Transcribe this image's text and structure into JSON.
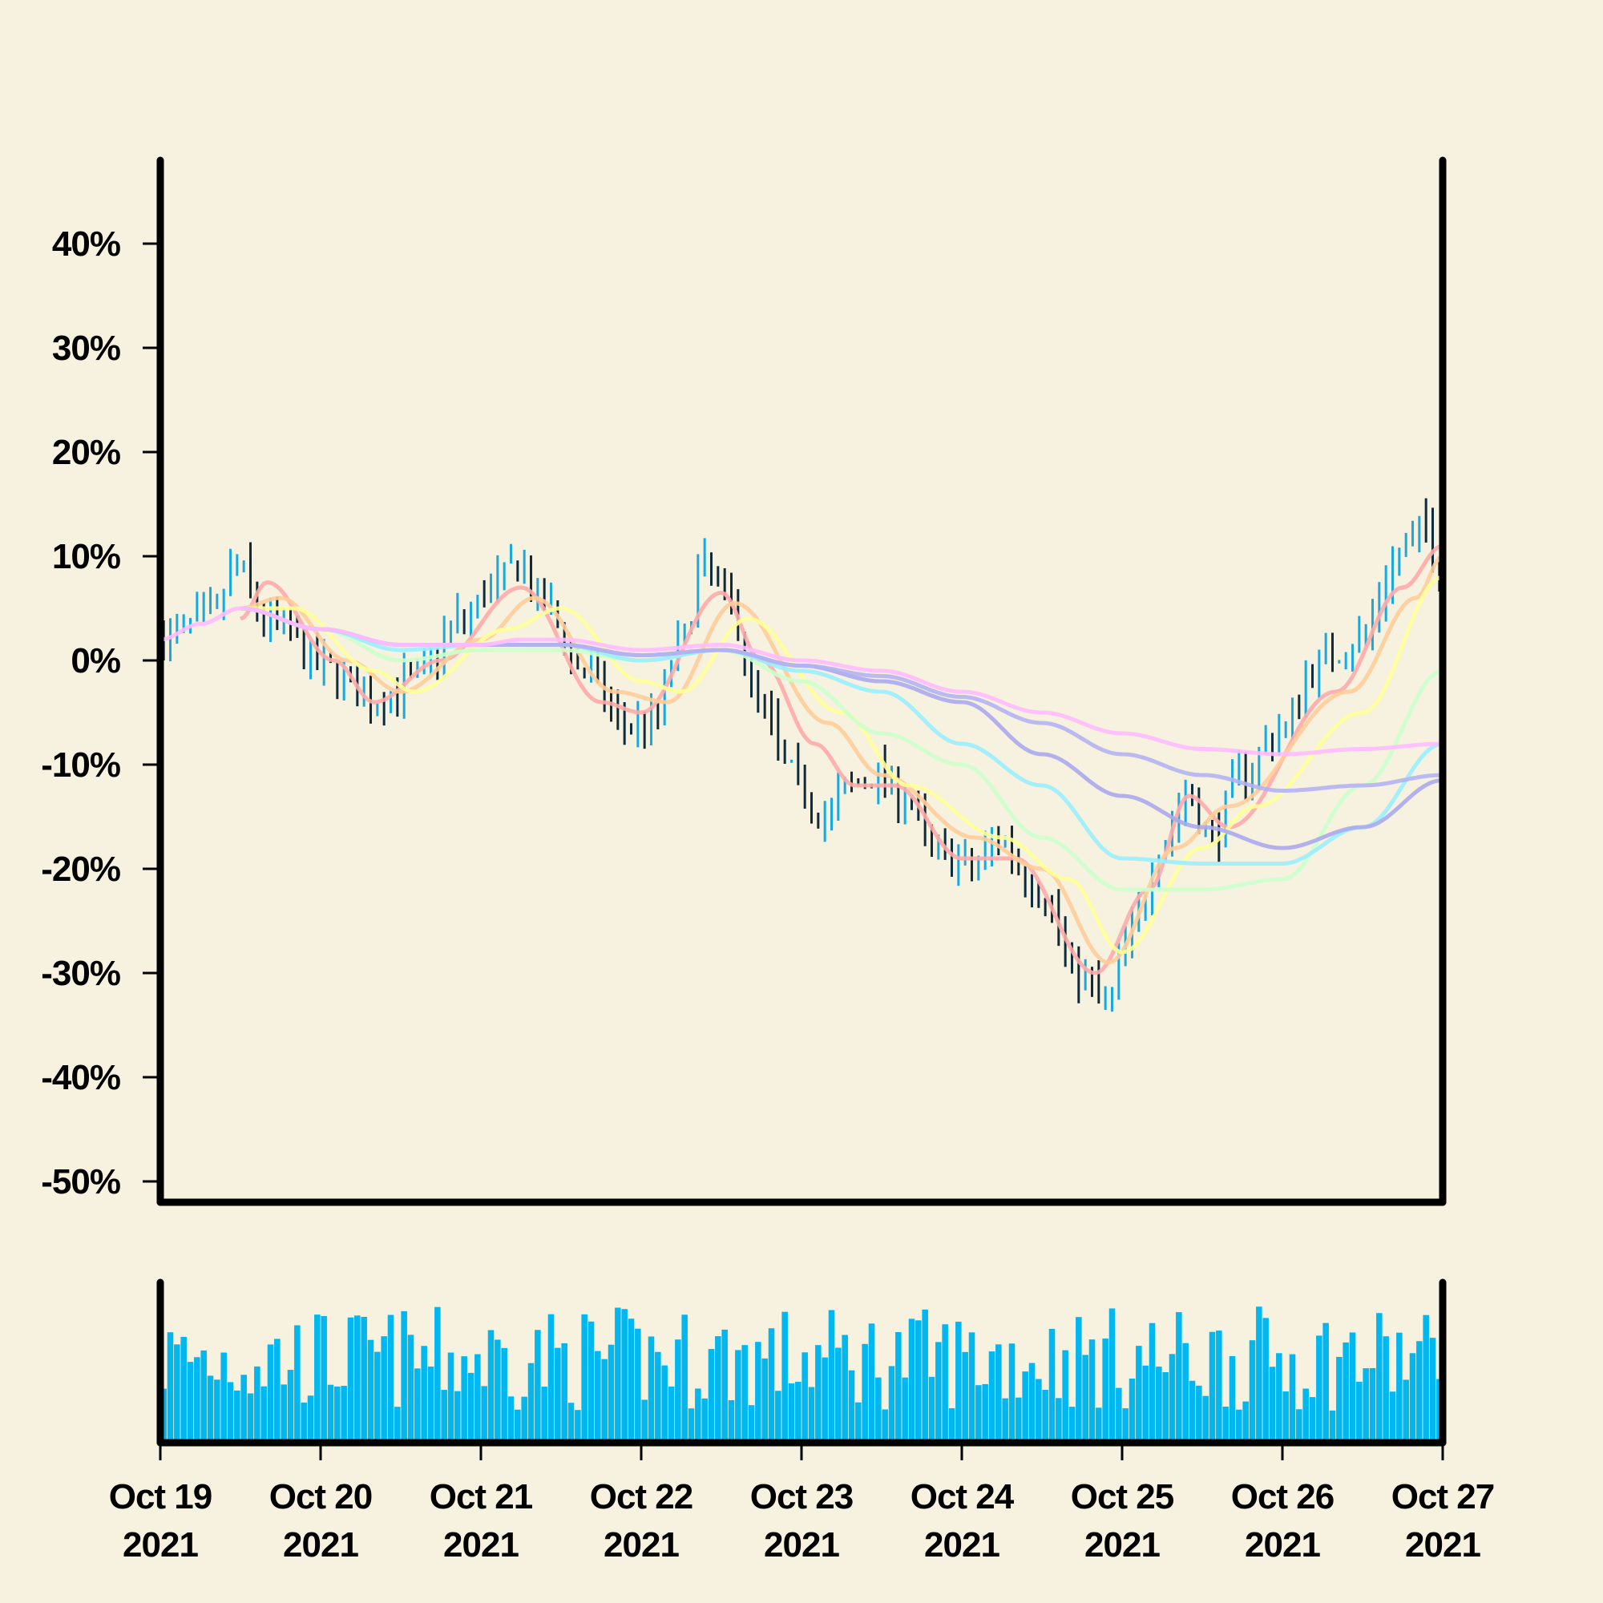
{
  "chart_data": {
    "type": "ohlc",
    "title": "",
    "xlabel": "",
    "ylabel": "",
    "y_unit": "%",
    "ylim": [
      -52,
      48
    ],
    "y_ticks": [
      {
        "value": 40,
        "label": "40%"
      },
      {
        "value": 30,
        "label": "30%"
      },
      {
        "value": 20,
        "label": "20%"
      },
      {
        "value": 10,
        "label": "10%"
      },
      {
        "value": 0,
        "label": "0%"
      },
      {
        "value": -10,
        "label": "-10%"
      },
      {
        "value": -20,
        "label": "-20%"
      },
      {
        "value": -30,
        "label": "-30%"
      },
      {
        "value": -40,
        "label": "-40%"
      },
      {
        "value": -50,
        "label": "-50%"
      }
    ],
    "x_range": [
      "2021-10-19",
      "2021-10-27"
    ],
    "x_ticks": [
      {
        "date": "2021-10-19",
        "line1": "Oct 19",
        "line2": "2021"
      },
      {
        "date": "2021-10-20",
        "line1": "Oct 20",
        "line2": "2021"
      },
      {
        "date": "2021-10-21",
        "line1": "Oct 21",
        "line2": "2021"
      },
      {
        "date": "2021-10-22",
        "line1": "Oct 22",
        "line2": "2021"
      },
      {
        "date": "2021-10-23",
        "line1": "Oct 23",
        "line2": "2021"
      },
      {
        "date": "2021-10-24",
        "line1": "Oct 24",
        "line2": "2021"
      },
      {
        "date": "2021-10-25",
        "line1": "Oct 25",
        "line2": "2021"
      },
      {
        "date": "2021-10-26",
        "line1": "Oct 26",
        "line2": "2021"
      },
      {
        "date": "2021-10-27",
        "line1": "Oct 27",
        "line2": "2021"
      }
    ],
    "bar_interval_hours": 1,
    "price_close_keypoints": [
      {
        "date": "2021-10-19T00:00",
        "value": 2
      },
      {
        "date": "2021-10-19T08:00",
        "value": 4
      },
      {
        "date": "2021-10-19T12:00",
        "value": 9
      },
      {
        "date": "2021-10-19T16:00",
        "value": 4
      },
      {
        "date": "2021-10-20T02:00",
        "value": -1
      },
      {
        "date": "2021-10-20T08:00",
        "value": -4
      },
      {
        "date": "2021-10-20T14:00",
        "value": -2
      },
      {
        "date": "2021-10-20T22:00",
        "value": 4
      },
      {
        "date": "2021-10-21T02:00",
        "value": 7
      },
      {
        "date": "2021-10-21T06:00",
        "value": 9
      },
      {
        "date": "2021-10-21T10:00",
        "value": 5
      },
      {
        "date": "2021-10-21T16:00",
        "value": -1
      },
      {
        "date": "2021-10-21T22:00",
        "value": -6
      },
      {
        "date": "2021-10-22T02:00",
        "value": -6
      },
      {
        "date": "2021-10-22T06:00",
        "value": 1
      },
      {
        "date": "2021-10-22T10:00",
        "value": 9
      },
      {
        "date": "2021-10-22T14:00",
        "value": 5
      },
      {
        "date": "2021-10-22T18:00",
        "value": -4
      },
      {
        "date": "2021-10-22T23:00",
        "value": -11
      },
      {
        "date": "2021-10-23T04:00",
        "value": -15
      },
      {
        "date": "2021-10-23T08:00",
        "value": -12
      },
      {
        "date": "2021-10-23T12:00",
        "value": -11
      },
      {
        "date": "2021-10-23T16:00",
        "value": -13
      },
      {
        "date": "2021-10-23T20:00",
        "value": -18
      },
      {
        "date": "2021-10-24T02:00",
        "value": -20
      },
      {
        "date": "2021-10-24T06:00",
        "value": -17
      },
      {
        "date": "2021-10-24T12:00",
        "value": -22
      },
      {
        "date": "2021-10-24T18:00",
        "value": -30
      },
      {
        "date": "2021-10-24T22:00",
        "value": -33
      },
      {
        "date": "2021-10-25T02:00",
        "value": -26
      },
      {
        "date": "2021-10-25T06:00",
        "value": -18
      },
      {
        "date": "2021-10-25T10:00",
        "value": -13
      },
      {
        "date": "2021-10-25T14:00",
        "value": -17
      },
      {
        "date": "2021-10-25T18:00",
        "value": -11
      },
      {
        "date": "2021-10-26T00:00",
        "value": -7
      },
      {
        "date": "2021-10-26T06:00",
        "value": 0
      },
      {
        "date": "2021-10-26T12:00",
        "value": 2
      },
      {
        "date": "2021-10-26T18:00",
        "value": 10
      },
      {
        "date": "2021-10-26T22:00",
        "value": 13
      },
      {
        "date": "2021-10-27T00:00",
        "value": 8
      }
    ],
    "moving_averages": [
      {
        "color": "#ffaaaa",
        "points": [
          {
            "date": "2021-10-19T12:00",
            "value": 4
          },
          {
            "date": "2021-10-19T16:00",
            "value": 7.5
          },
          {
            "date": "2021-10-20T02:00",
            "value": 0
          },
          {
            "date": "2021-10-20T08:00",
            "value": -4
          },
          {
            "date": "2021-10-20T18:00",
            "value": 0
          },
          {
            "date": "2021-10-21T06:00",
            "value": 7
          },
          {
            "date": "2021-10-21T18:00",
            "value": -4
          },
          {
            "date": "2021-10-22T00:00",
            "value": -5
          },
          {
            "date": "2021-10-22T12:00",
            "value": 6.5
          },
          {
            "date": "2021-10-22T18:00",
            "value": 0
          },
          {
            "date": "2021-10-23T02:00",
            "value": -8
          },
          {
            "date": "2021-10-23T08:00",
            "value": -12
          },
          {
            "date": "2021-10-23T14:00",
            "value": -12
          },
          {
            "date": "2021-10-24T00:00",
            "value": -19
          },
          {
            "date": "2021-10-24T08:00",
            "value": -19
          },
          {
            "date": "2021-10-24T20:00",
            "value": -30
          },
          {
            "date": "2021-10-25T04:00",
            "value": -22
          },
          {
            "date": "2021-10-25T10:00",
            "value": -13
          },
          {
            "date": "2021-10-25T16:00",
            "value": -16
          },
          {
            "date": "2021-10-26T08:00",
            "value": -3
          },
          {
            "date": "2021-10-26T18:00",
            "value": 7
          },
          {
            "date": "2021-10-27T00:00",
            "value": 11
          }
        ]
      },
      {
        "color": "#ffcc99",
        "points": [
          {
            "date": "2021-10-19T12:00",
            "value": 5
          },
          {
            "date": "2021-10-19T18:00",
            "value": 6
          },
          {
            "date": "2021-10-20T04:00",
            "value": 0
          },
          {
            "date": "2021-10-20T12:00",
            "value": -3
          },
          {
            "date": "2021-10-21T00:00",
            "value": 2
          },
          {
            "date": "2021-10-21T08:00",
            "value": 6
          },
          {
            "date": "2021-10-21T20:00",
            "value": -3
          },
          {
            "date": "2021-10-22T04:00",
            "value": -4
          },
          {
            "date": "2021-10-22T14:00",
            "value": 5.5
          },
          {
            "date": "2021-10-23T04:00",
            "value": -6
          },
          {
            "date": "2021-10-23T12:00",
            "value": -11
          },
          {
            "date": "2021-10-24T02:00",
            "value": -17
          },
          {
            "date": "2021-10-24T12:00",
            "value": -20
          },
          {
            "date": "2021-10-24T22:00",
            "value": -29
          },
          {
            "date": "2021-10-25T08:00",
            "value": -18
          },
          {
            "date": "2021-10-25T16:00",
            "value": -14
          },
          {
            "date": "2021-10-26T10:00",
            "value": -3
          },
          {
            "date": "2021-10-26T20:00",
            "value": 6
          },
          {
            "date": "2021-10-27T00:00",
            "value": 10
          }
        ]
      },
      {
        "color": "#ffff99",
        "points": [
          {
            "date": "2021-10-19T12:00",
            "value": 5
          },
          {
            "date": "2021-10-19T20:00",
            "value": 5
          },
          {
            "date": "2021-10-20T08:00",
            "value": -1
          },
          {
            "date": "2021-10-20T14:00",
            "value": -3
          },
          {
            "date": "2021-10-21T04:00",
            "value": 3
          },
          {
            "date": "2021-10-21T12:00",
            "value": 5
          },
          {
            "date": "2021-10-22T00:00",
            "value": -2
          },
          {
            "date": "2021-10-22T06:00",
            "value": -3
          },
          {
            "date": "2021-10-22T16:00",
            "value": 4
          },
          {
            "date": "2021-10-23T06:00",
            "value": -5
          },
          {
            "date": "2021-10-23T16:00",
            "value": -12
          },
          {
            "date": "2021-10-24T06:00",
            "value": -17
          },
          {
            "date": "2021-10-24T16:00",
            "value": -21
          },
          {
            "date": "2021-10-25T00:00",
            "value": -28
          },
          {
            "date": "2021-10-25T12:00",
            "value": -18
          },
          {
            "date": "2021-10-25T20:00",
            "value": -14
          },
          {
            "date": "2021-10-26T12:00",
            "value": -5
          },
          {
            "date": "2021-10-27T00:00",
            "value": 8
          }
        ]
      },
      {
        "color": "#ccffcc",
        "points": [
          {
            "date": "2021-10-19T12:00",
            "value": 5
          },
          {
            "date": "2021-10-20T00:00",
            "value": 3
          },
          {
            "date": "2021-10-20T12:00",
            "value": 0
          },
          {
            "date": "2021-10-21T00:00",
            "value": 1
          },
          {
            "date": "2021-10-21T12:00",
            "value": 1
          },
          {
            "date": "2021-10-22T00:00",
            "value": 0
          },
          {
            "date": "2021-10-22T12:00",
            "value": 1
          },
          {
            "date": "2021-10-23T00:00",
            "value": -2
          },
          {
            "date": "2021-10-23T12:00",
            "value": -7
          },
          {
            "date": "2021-10-24T00:00",
            "value": -10
          },
          {
            "date": "2021-10-24T12:00",
            "value": -17
          },
          {
            "date": "2021-10-25T00:00",
            "value": -22
          },
          {
            "date": "2021-10-25T12:00",
            "value": -22
          },
          {
            "date": "2021-10-26T00:00",
            "value": -21
          },
          {
            "date": "2021-10-26T12:00",
            "value": -12
          },
          {
            "date": "2021-10-27T00:00",
            "value": -1
          }
        ]
      },
      {
        "color": "#99eeff",
        "points": [
          {
            "date": "2021-10-19T12:00",
            "value": 5
          },
          {
            "date": "2021-10-20T00:00",
            "value": 3
          },
          {
            "date": "2021-10-20T12:00",
            "value": 1
          },
          {
            "date": "2021-10-21T00:00",
            "value": 1.5
          },
          {
            "date": "2021-10-21T12:00",
            "value": 1.5
          },
          {
            "date": "2021-10-22T00:00",
            "value": 0
          },
          {
            "date": "2021-10-22T12:00",
            "value": 1
          },
          {
            "date": "2021-10-23T00:00",
            "value": -1
          },
          {
            "date": "2021-10-23T12:00",
            "value": -3
          },
          {
            "date": "2021-10-24T00:00",
            "value": -8
          },
          {
            "date": "2021-10-24T12:00",
            "value": -12
          },
          {
            "date": "2021-10-25T00:00",
            "value": -19
          },
          {
            "date": "2021-10-25T12:00",
            "value": -19.5
          },
          {
            "date": "2021-10-26T00:00",
            "value": -19.5
          },
          {
            "date": "2021-10-26T12:00",
            "value": -16
          },
          {
            "date": "2021-10-27T00:00",
            "value": -8
          }
        ]
      },
      {
        "color": "#aaaaee",
        "points": [
          {
            "date": "2021-10-19T12:00",
            "value": 5
          },
          {
            "date": "2021-10-20T00:00",
            "value": 3
          },
          {
            "date": "2021-10-20T12:00",
            "value": 1.5
          },
          {
            "date": "2021-10-21T00:00",
            "value": 1.5
          },
          {
            "date": "2021-10-21T12:00",
            "value": 1.5
          },
          {
            "date": "2021-10-22T00:00",
            "value": 0.5
          },
          {
            "date": "2021-10-22T12:00",
            "value": 1
          },
          {
            "date": "2021-10-23T00:00",
            "value": -0.5
          },
          {
            "date": "2021-10-23T12:00",
            "value": -2
          },
          {
            "date": "2021-10-24T00:00",
            "value": -4
          },
          {
            "date": "2021-10-24T12:00",
            "value": -9
          },
          {
            "date": "2021-10-25T00:00",
            "value": -13
          },
          {
            "date": "2021-10-25T12:00",
            "value": -16
          },
          {
            "date": "2021-10-26T00:00",
            "value": -18
          },
          {
            "date": "2021-10-26T12:00",
            "value": -16
          },
          {
            "date": "2021-10-27T00:00",
            "value": -11.5
          }
        ]
      },
      {
        "color": "#b3b3f2",
        "points": [
          {
            "date": "2021-10-19T12:00",
            "value": 5
          },
          {
            "date": "2021-10-20T00:00",
            "value": 3
          },
          {
            "date": "2021-10-20T12:00",
            "value": 1.5
          },
          {
            "date": "2021-10-21T00:00",
            "value": 1.5
          },
          {
            "date": "2021-10-21T12:00",
            "value": 1.5
          },
          {
            "date": "2021-10-22T00:00",
            "value": 0.5
          },
          {
            "date": "2021-10-22T12:00",
            "value": 1
          },
          {
            "date": "2021-10-23T00:00",
            "value": -0.5
          },
          {
            "date": "2021-10-23T12:00",
            "value": -1.5
          },
          {
            "date": "2021-10-24T00:00",
            "value": -3.5
          },
          {
            "date": "2021-10-24T12:00",
            "value": -6
          },
          {
            "date": "2021-10-25T00:00",
            "value": -9
          },
          {
            "date": "2021-10-25T12:00",
            "value": -11
          },
          {
            "date": "2021-10-26T00:00",
            "value": -12.5
          },
          {
            "date": "2021-10-26T12:00",
            "value": -12
          },
          {
            "date": "2021-10-27T00:00",
            "value": -11
          }
        ]
      },
      {
        "color": "#ffbbff",
        "points": [
          {
            "date": "2021-10-19T00:00",
            "value": 2
          },
          {
            "date": "2021-10-19T06:00",
            "value": 3.5
          },
          {
            "date": "2021-10-19T12:00",
            "value": 5
          },
          {
            "date": "2021-10-20T00:00",
            "value": 3
          },
          {
            "date": "2021-10-20T12:00",
            "value": 1.5
          },
          {
            "date": "2021-10-21T00:00",
            "value": 1.5
          },
          {
            "date": "2021-10-21T06:00",
            "value": 2
          },
          {
            "date": "2021-10-21T12:00",
            "value": 2
          },
          {
            "date": "2021-10-22T00:00",
            "value": 1
          },
          {
            "date": "2021-10-22T12:00",
            "value": 1.5
          },
          {
            "date": "2021-10-23T00:00",
            "value": 0
          },
          {
            "date": "2021-10-23T12:00",
            "value": -1
          },
          {
            "date": "2021-10-24T00:00",
            "value": -3
          },
          {
            "date": "2021-10-24T12:00",
            "value": -5
          },
          {
            "date": "2021-10-25T00:00",
            "value": -7
          },
          {
            "date": "2021-10-25T12:00",
            "value": -8.5
          },
          {
            "date": "2021-10-26T00:00",
            "value": -9
          },
          {
            "date": "2021-10-26T12:00",
            "value": -8.5
          },
          {
            "date": "2021-10-27T00:00",
            "value": -8
          }
        ]
      }
    ],
    "up_color": "#1aa8e0",
    "down_color": "#0d2b3a",
    "volume_color": "#00b7f0",
    "axes_color": "#000000",
    "grid": false,
    "legend": "none"
  }
}
